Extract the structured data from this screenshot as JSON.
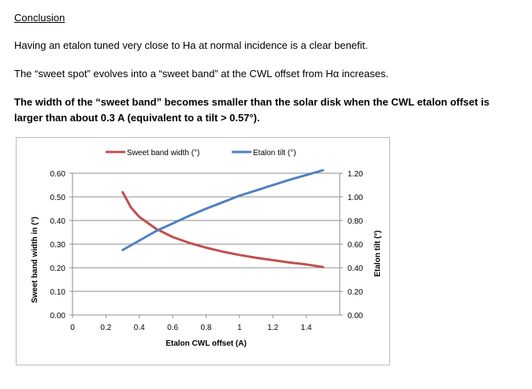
{
  "document": {
    "heading": "Conclusion",
    "paragraph1": "Having an etalon tuned very close to Ha at normal incidence is a clear benefit.",
    "paragraph2": "The “sweet spot” evolves into a “sweet band” at the CWL offset from Hα increases.",
    "paragraph3_line1": "The width of the “sweet band” becomes smaller than the solar disk when the CWL etalon offset is",
    "paragraph3_line2": "larger than about 0.3 A (equivalent to a tilt > 0.57°)."
  },
  "chart_data": {
    "type": "line",
    "title": "",
    "xlabel": "Etalon CWL offset (A)",
    "ylabel": "Sweet band width in (°)",
    "y2label": "Etalon tilt (°)",
    "xlim": [
      0,
      1.6
    ],
    "ylim": [
      0,
      0.6
    ],
    "y2lim": [
      0,
      1.2
    ],
    "x_ticks": [
      "0",
      "0.2",
      "0.4",
      "0.6",
      "0.8",
      "1",
      "1.2",
      "1.4"
    ],
    "y_ticks": [
      "0.00",
      "0.10",
      "0.20",
      "0.30",
      "0.40",
      "0.50",
      "0.60"
    ],
    "y2_ticks": [
      "0.00",
      "0.20",
      "0.40",
      "0.60",
      "0.80",
      "1.00",
      "1.20"
    ],
    "grid": "horizontal",
    "legend": "top",
    "series": [
      {
        "name": "Sweet band width (°)",
        "axis": "left",
        "color": "#c0504d",
        "x": [
          0.3,
          0.35,
          0.4,
          0.5,
          0.6,
          0.7,
          0.8,
          0.9,
          1.0,
          1.1,
          1.2,
          1.3,
          1.4,
          1.5
        ],
        "y": [
          0.52,
          0.455,
          0.415,
          0.365,
          0.33,
          0.305,
          0.285,
          0.268,
          0.254,
          0.242,
          0.232,
          0.222,
          0.214,
          0.203
        ]
      },
      {
        "name": "Etalon tilt (°)",
        "axis": "right",
        "color": "#4f81bd",
        "x": [
          0.3,
          0.4,
          0.5,
          0.6,
          0.7,
          0.8,
          0.9,
          1.0,
          1.1,
          1.2,
          1.3,
          1.4,
          1.5
        ],
        "y": [
          0.55,
          0.63,
          0.71,
          0.775,
          0.84,
          0.9,
          0.955,
          1.01,
          1.055,
          1.1,
          1.145,
          1.185,
          1.225
        ]
      }
    ]
  }
}
